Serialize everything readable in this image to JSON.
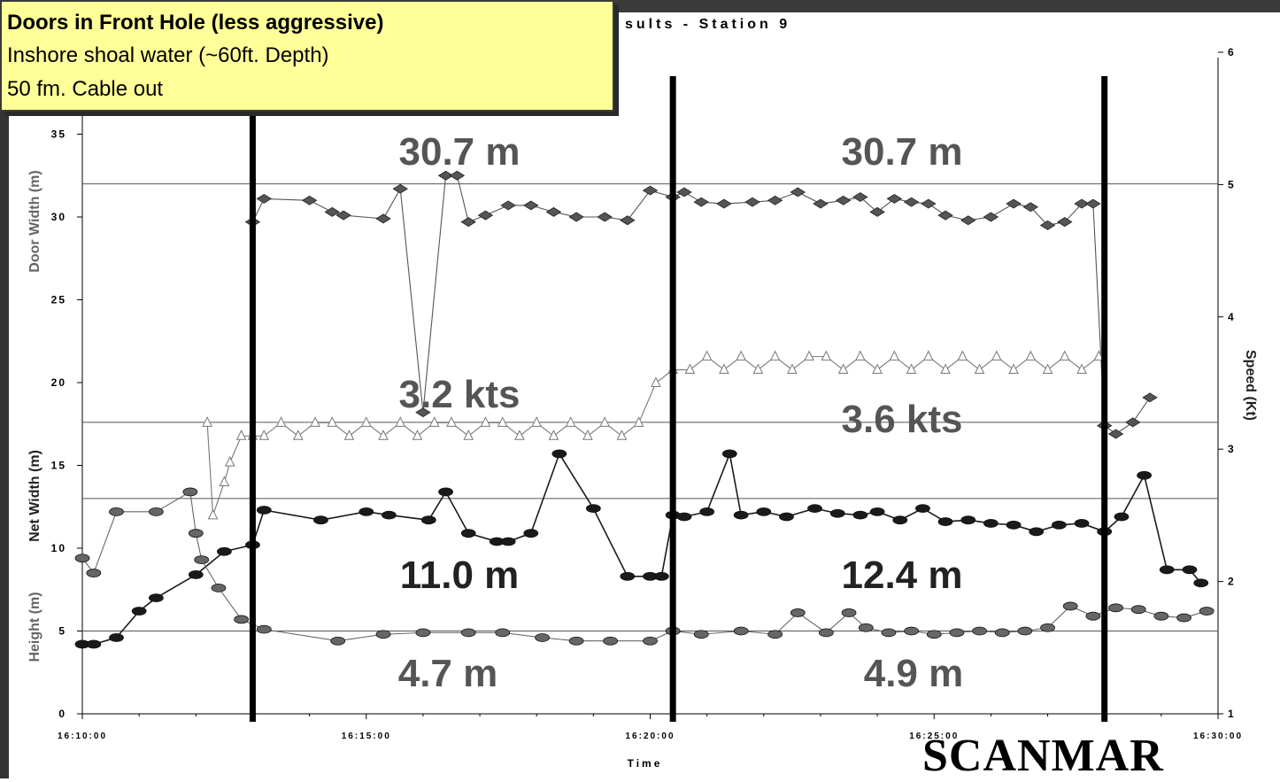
{
  "annotation_box": {
    "line1": "Doors in Front Hole (less aggressive)",
    "line2": "Inshore shoal water (~60ft. Depth)",
    "line3": "50 fm. Cable out"
  },
  "brand": "SCANMAR",
  "chart_data": {
    "type": "line",
    "title": "sults - Station 9",
    "xlabel": "Time",
    "ylabel_left": [
      "Height (m)",
      "Net Width (m)",
      "Door Width (m)"
    ],
    "ylabel_right": "Speed (Kt)",
    "x_ticks": [
      "16:10:00",
      "16:15:00",
      "16:20:00",
      "16:25:00",
      "16:30:00"
    ],
    "y_ticks_left": [
      "0",
      "5",
      "10",
      "15",
      "20",
      "25",
      "30",
      "35"
    ],
    "y_ticks_right": [
      "1",
      "2",
      "3",
      "4",
      "5",
      "6"
    ],
    "xlim_min": [
      0,
      20
    ],
    "ylim_left": [
      0,
      35
    ],
    "ylim_right": [
      1,
      6
    ],
    "grid": "horizontal lines at 5, 13, 17.6, 32",
    "hlines": [
      5,
      13,
      17.6,
      32
    ],
    "vlines_min": [
      3.0,
      10.4,
      18.0
    ],
    "series": [
      {
        "axis": "left",
        "marker": "diamond",
        "x": [
          3.0,
          3.2,
          4.0,
          4.4,
          4.6,
          5.3,
          5.6,
          6.0,
          6.4,
          6.6,
          6.8,
          7.1,
          7.5,
          7.9,
          8.3,
          8.7,
          9.2,
          9.6,
          10.0,
          10.4,
          10.6,
          10.9,
          11.3,
          11.8,
          12.2,
          12.6,
          13.0,
          13.4,
          13.7,
          14.0,
          14.3,
          14.6,
          14.9,
          15.2,
          15.6,
          16.0,
          16.4,
          16.7,
          17.0,
          17.3,
          17.6,
          17.8,
          18.0,
          18.2,
          18.5,
          18.8
        ],
        "y": [
          29.7,
          31.1,
          31.0,
          30.3,
          30.1,
          29.9,
          31.7,
          18.2,
          32.5,
          32.5,
          29.7,
          30.1,
          30.7,
          30.7,
          30.3,
          30.0,
          30.0,
          29.8,
          31.6,
          31.2,
          31.5,
          30.9,
          30.8,
          30.9,
          31.0,
          31.5,
          30.8,
          31.0,
          31.2,
          30.3,
          31.1,
          30.9,
          30.8,
          30.1,
          29.8,
          30.0,
          30.8,
          30.6,
          29.5,
          29.7,
          30.8,
          30.8,
          17.4,
          16.9,
          17.6,
          19.1
        ]
      },
      {
        "axis": "right",
        "marker": "triangle",
        "x": [
          2.2,
          2.3,
          2.5,
          2.6,
          2.8,
          3.0,
          3.2,
          3.5,
          3.8,
          4.1,
          4.4,
          4.7,
          5.0,
          5.3,
          5.6,
          5.9,
          6.2,
          6.5,
          6.8,
          7.1,
          7.4,
          7.7,
          8.0,
          8.3,
          8.6,
          8.9,
          9.2,
          9.5,
          9.8,
          10.1,
          10.4,
          10.7,
          11.0,
          11.3,
          11.6,
          11.9,
          12.2,
          12.5,
          12.8,
          13.1,
          13.4,
          13.7,
          14.0,
          14.3,
          14.6,
          14.9,
          15.2,
          15.5,
          15.8,
          16.1,
          16.4,
          16.7,
          17.0,
          17.3,
          17.6,
          17.9
        ],
        "y": [
          3.2,
          2.5,
          2.75,
          2.9,
          3.1,
          3.1,
          3.1,
          3.2,
          3.1,
          3.2,
          3.2,
          3.1,
          3.2,
          3.1,
          3.2,
          3.1,
          3.2,
          3.2,
          3.1,
          3.2,
          3.2,
          3.1,
          3.2,
          3.1,
          3.2,
          3.1,
          3.2,
          3.1,
          3.2,
          3.5,
          3.6,
          3.6,
          3.7,
          3.6,
          3.7,
          3.6,
          3.7,
          3.6,
          3.7,
          3.7,
          3.6,
          3.7,
          3.6,
          3.7,
          3.6,
          3.7,
          3.6,
          3.7,
          3.6,
          3.7,
          3.6,
          3.7,
          3.6,
          3.7,
          3.6,
          3.7
        ]
      },
      {
        "axis": "left",
        "marker": "circle",
        "x": [
          0.0,
          0.2,
          0.6,
          1.0,
          1.3,
          2.0,
          2.5,
          3.0,
          3.2,
          4.2,
          5.0,
          5.4,
          6.1,
          6.4,
          6.8,
          7.3,
          7.5,
          7.9,
          8.4,
          9.0,
          9.6,
          10.0,
          10.2,
          10.4,
          10.6,
          11.0,
          11.4,
          11.6,
          12.0,
          12.4,
          12.9,
          13.3,
          13.7,
          14.0,
          14.4,
          14.8,
          15.2,
          15.6,
          16.0,
          16.4,
          16.8,
          17.2,
          17.6,
          18.0,
          18.3,
          18.7,
          19.1,
          19.5,
          19.7
        ],
        "y": [
          4.2,
          4.2,
          4.6,
          6.2,
          7.0,
          8.4,
          9.8,
          10.2,
          12.3,
          11.7,
          12.2,
          12.0,
          11.7,
          13.4,
          10.9,
          10.4,
          10.4,
          10.9,
          15.7,
          12.4,
          8.3,
          8.3,
          8.3,
          12.0,
          11.9,
          12.2,
          15.7,
          12.0,
          12.2,
          11.9,
          12.4,
          12.1,
          12.0,
          12.2,
          11.7,
          12.4,
          11.6,
          11.7,
          11.5,
          11.4,
          11.0,
          11.4,
          11.5,
          11.0,
          11.9,
          14.4,
          8.7,
          8.7,
          7.9
        ]
      },
      {
        "axis": "left",
        "marker": "circle",
        "x": [
          0.0,
          0.2,
          0.6,
          1.3,
          1.9,
          2.0,
          2.1,
          2.4,
          2.8,
          3.2,
          4.5,
          5.3,
          6.0,
          6.8,
          7.4,
          8.1,
          8.7,
          9.3,
          10.0,
          10.4,
          10.9,
          11.6,
          12.2,
          12.6,
          13.1,
          13.5,
          13.8,
          14.2,
          14.6,
          15.0,
          15.4,
          15.8,
          16.2,
          16.6,
          17.0,
          17.4,
          17.8,
          18.2,
          18.6,
          19.0,
          19.4,
          19.8
        ],
        "y": [
          9.4,
          8.5,
          12.2,
          12.2,
          13.4,
          10.9,
          9.3,
          7.6,
          5.7,
          5.1,
          4.4,
          4.8,
          4.9,
          4.9,
          4.9,
          4.6,
          4.4,
          4.4,
          4.4,
          5.0,
          4.8,
          5.0,
          4.8,
          6.1,
          4.9,
          6.1,
          5.2,
          4.9,
          5.0,
          4.8,
          4.9,
          5.0,
          4.9,
          5.0,
          5.2,
          6.5,
          5.9,
          6.4,
          6.3,
          5.9,
          5.8,
          6.2
        ]
      }
    ],
    "annotations": [
      {
        "text": "30.7 m"
      },
      {
        "text": "30.7 m"
      },
      {
        "text": "3.2 kts"
      },
      {
        "text": "3.6 kts"
      },
      {
        "text": "11.0 m"
      },
      {
        "text": "12.4 m"
      },
      {
        "text": "4.7 m"
      },
      {
        "text": "4.9 m"
      }
    ],
    "colors": {
      "door": "#555555",
      "speed": "#777777",
      "net": "#1a1a1a",
      "height": "#666666",
      "annotation": "#555555",
      "annotation_dark": "#222222"
    }
  }
}
